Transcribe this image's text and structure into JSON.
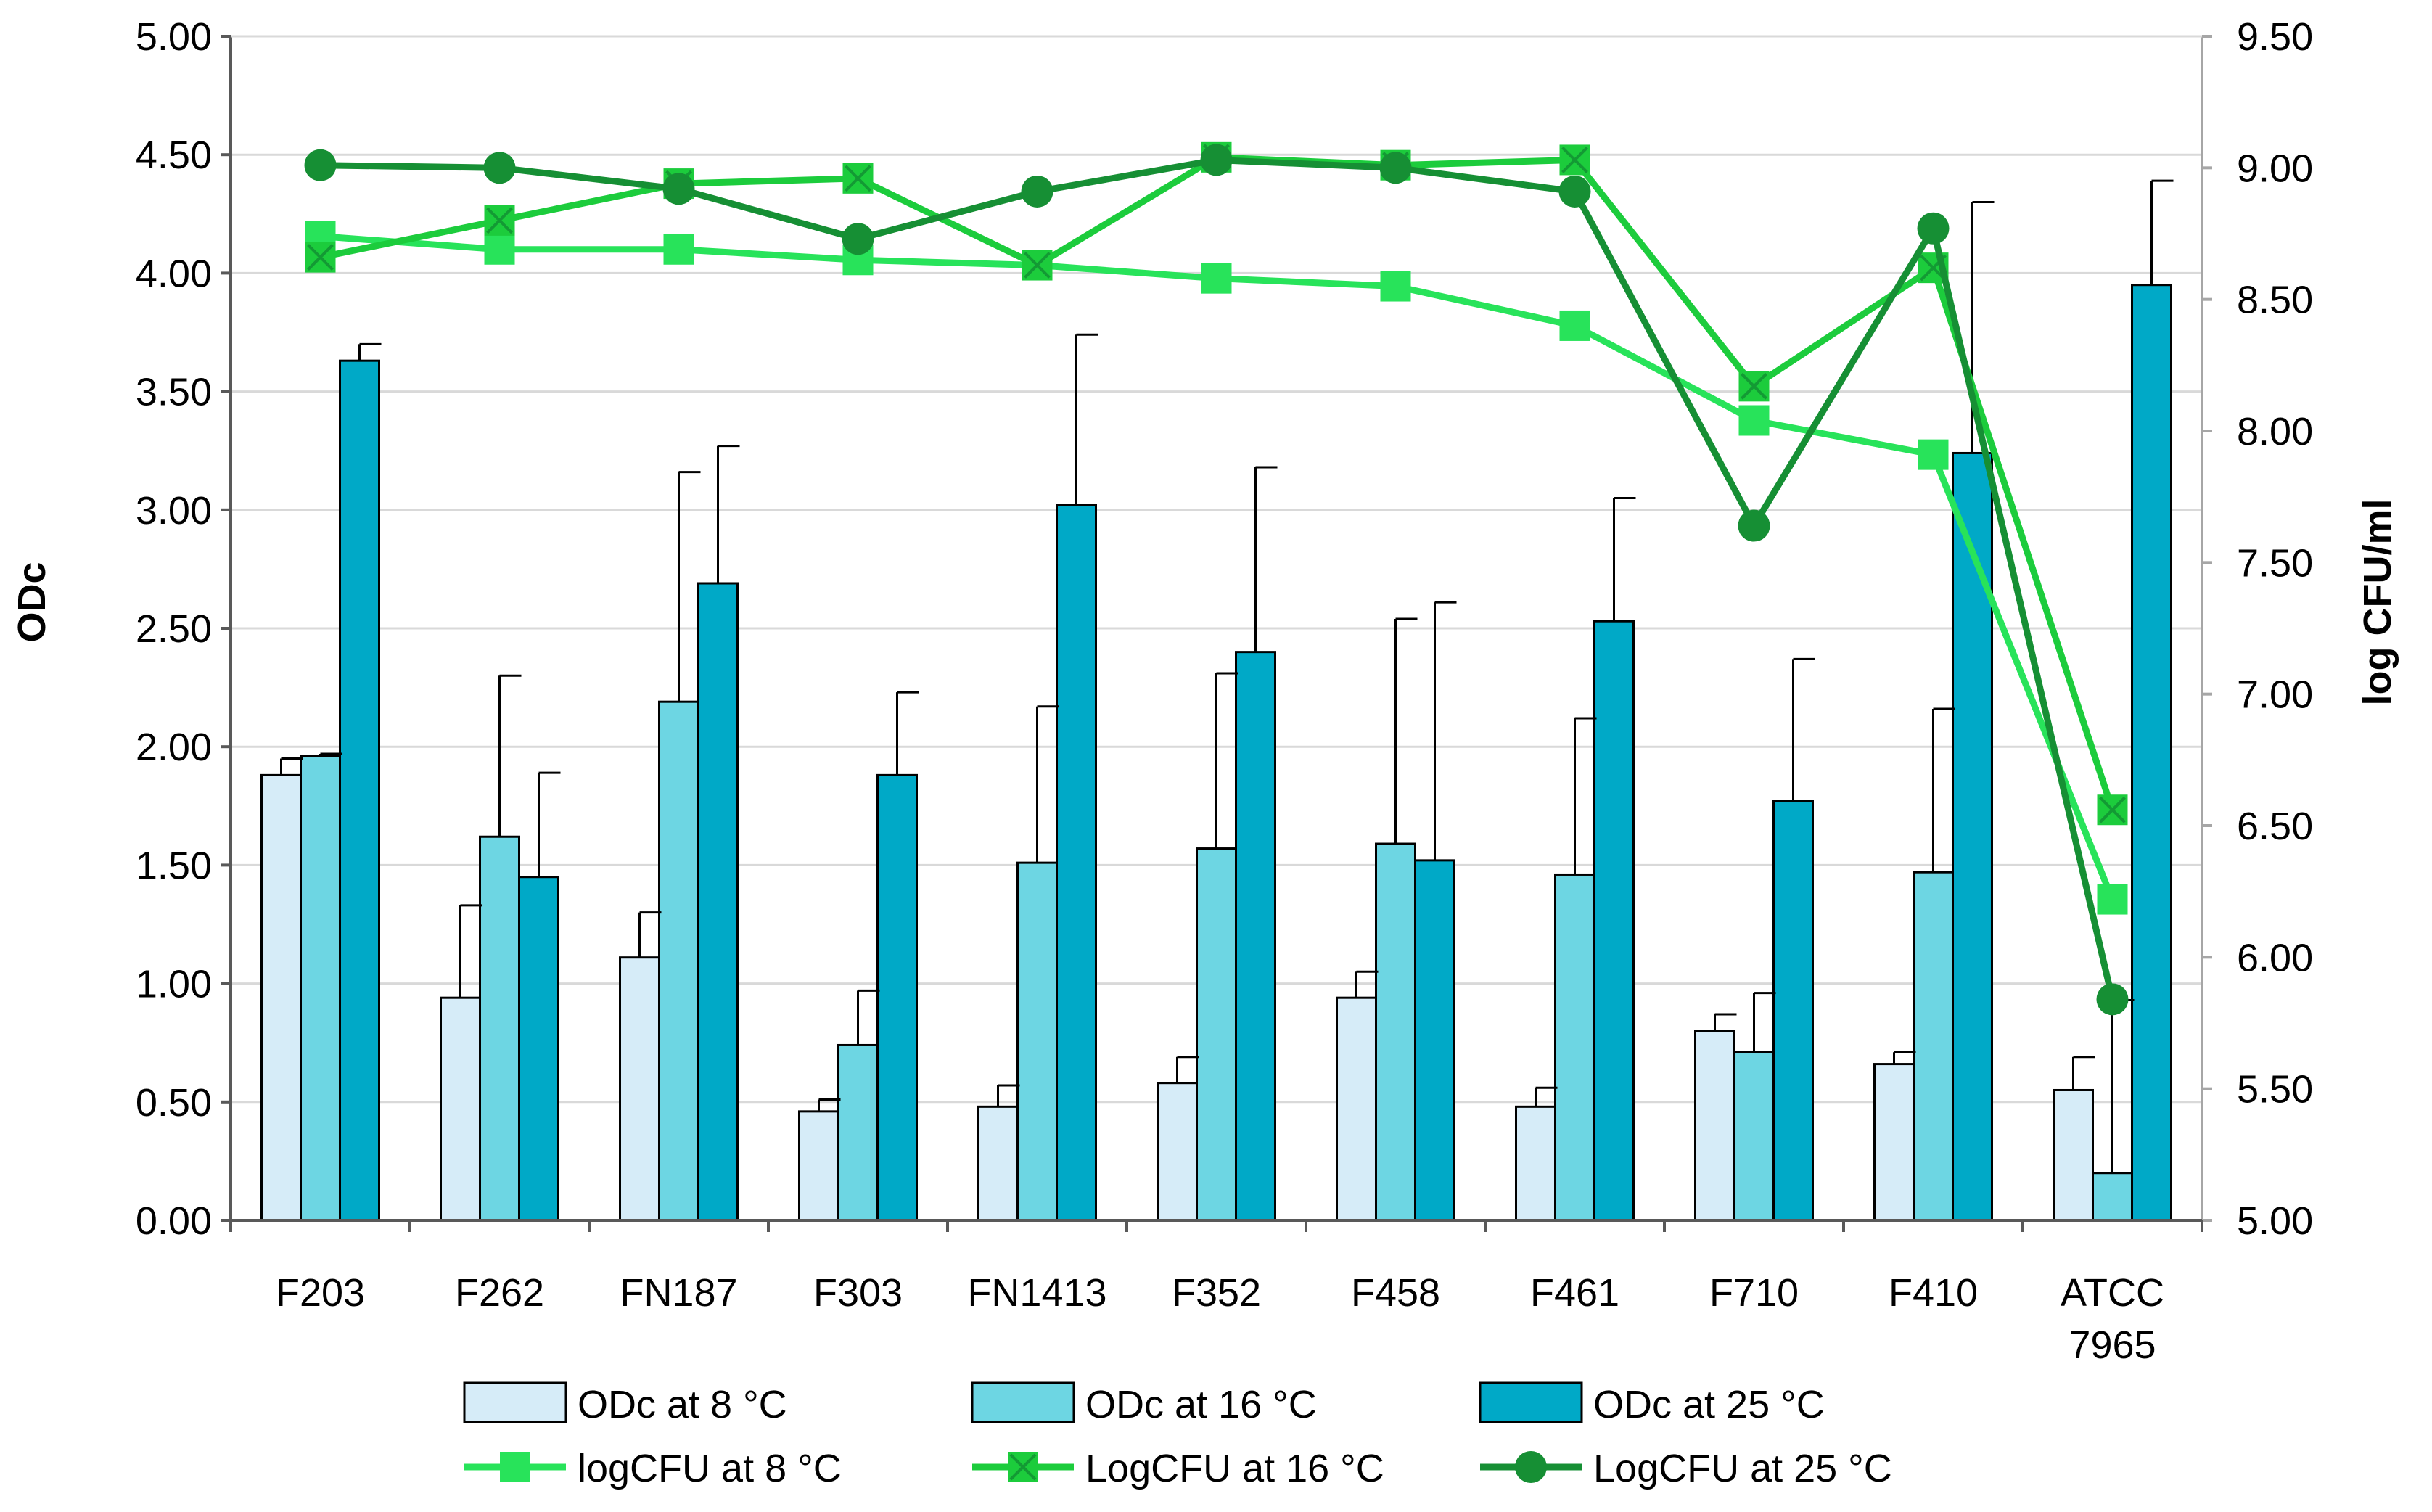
{
  "chart_data": {
    "type": "bar",
    "categories": [
      "F203",
      "F262",
      "FN187",
      "F303",
      "FN1413",
      "F352",
      "F458",
      "F461",
      "F710",
      "F410",
      "ATCC 7965"
    ],
    "category_lines": [
      [
        "F203"
      ],
      [
        "F262"
      ],
      [
        "FN187"
      ],
      [
        "F303"
      ],
      [
        "FN1413"
      ],
      [
        "F352"
      ],
      [
        "F458"
      ],
      [
        "F461"
      ],
      [
        "F710"
      ],
      [
        "F410"
      ],
      [
        "ATCC",
        "7965"
      ]
    ],
    "ylabel": "ODc",
    "y2label": "log CFU/ml",
    "ylim": [
      0,
      5
    ],
    "y2lim": [
      5,
      9.5
    ],
    "yticks": [
      "0.00",
      "0.50",
      "1.00",
      "1.50",
      "2.00",
      "2.50",
      "3.00",
      "3.50",
      "4.00",
      "4.50",
      "5.00"
    ],
    "y2ticks": [
      "5.00",
      "5.50",
      "6.00",
      "6.50",
      "7.00",
      "7.50",
      "8.00",
      "8.50",
      "9.00",
      "9.50"
    ],
    "grid": "horizontal",
    "legend_position": "bottom",
    "bar_series": [
      {
        "name": "ODc at 8 °C",
        "color": "#d6ecf8",
        "values": [
          1.88,
          0.94,
          1.11,
          0.46,
          0.48,
          0.58,
          0.94,
          0.48,
          0.8,
          0.66,
          0.55
        ],
        "errors": [
          0.07,
          0.39,
          0.19,
          0.05,
          0.09,
          0.11,
          0.11,
          0.08,
          0.07,
          0.05,
          0.14
        ]
      },
      {
        "name": "ODc at 16 °C",
        "color": "#6dd6e3",
        "values": [
          1.96,
          1.62,
          2.19,
          0.74,
          1.51,
          1.57,
          1.59,
          1.46,
          0.71,
          1.47,
          0.2
        ],
        "errors": [
          0.01,
          0.68,
          0.97,
          0.23,
          0.66,
          0.74,
          0.95,
          0.66,
          0.25,
          0.69,
          0.73
        ]
      },
      {
        "name": "ODc at 25 °C",
        "color": "#00a9c7",
        "values": [
          3.63,
          1.45,
          2.69,
          1.88,
          3.02,
          2.4,
          1.52,
          2.53,
          1.77,
          3.24,
          3.95
        ],
        "errors": [
          0.07,
          0.44,
          0.58,
          0.35,
          0.72,
          0.78,
          1.09,
          0.52,
          0.6,
          1.06,
          0.44
        ]
      }
    ],
    "line_series": [
      {
        "name": "logCFU at 8 °C",
        "color": "#28e35a",
        "marker": "square",
        "values": [
          8.74,
          8.69,
          8.69,
          8.65,
          8.63,
          8.58,
          8.55,
          8.4,
          8.04,
          7.91,
          6.22
        ]
      },
      {
        "name": "LogCFU at 16 °C",
        "color": "#1ccc3c",
        "marker": "square-x",
        "values": [
          8.66,
          8.8,
          8.94,
          8.96,
          8.63,
          9.04,
          9.01,
          9.03,
          8.17,
          8.62,
          6.56
        ]
      },
      {
        "name": "LogCFU at 25 °C",
        "color": "#168f34",
        "marker": "circle",
        "values": [
          9.01,
          9.0,
          8.92,
          8.73,
          8.91,
          9.03,
          9.0,
          8.91,
          7.64,
          8.77,
          5.84
        ]
      }
    ]
  }
}
